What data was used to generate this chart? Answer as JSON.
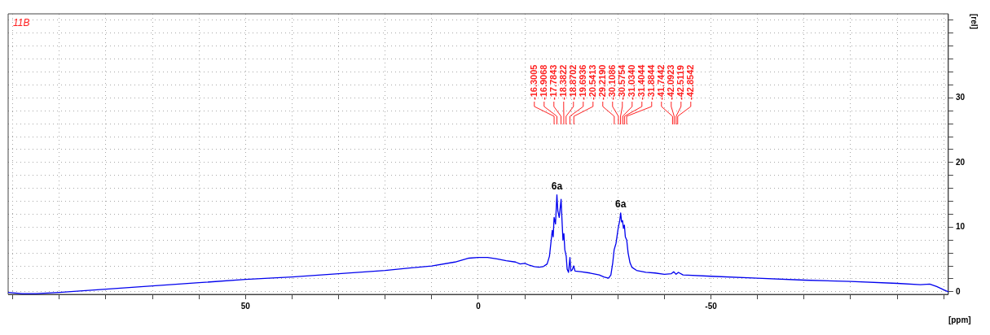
{
  "chart_data": {
    "type": "line",
    "xlabel": "[ppm]",
    "ylabel": "[rel]",
    "xlim": [
      101,
      -101
    ],
    "xticks": [
      {
        "value": 100,
        "label": null
      },
      {
        "value": 90,
        "label": null
      },
      {
        "value": 80,
        "label": null
      },
      {
        "value": 70,
        "label": null
      },
      {
        "value": 60,
        "label": null
      },
      50,
      {
        "value": 40,
        "label": null
      },
      {
        "value": 30,
        "label": null
      },
      {
        "value": 20,
        "label": null
      },
      {
        "value": 10,
        "label": null
      },
      0,
      {
        "value": -10,
        "label": null
      },
      {
        "value": -20,
        "label": null
      },
      {
        "value": -30,
        "label": null
      },
      {
        "value": -40,
        "label": null
      },
      -50,
      {
        "value": -60,
        "label": null
      },
      {
        "value": -70,
        "label": null
      },
      {
        "value": -80,
        "label": null
      },
      {
        "value": -90,
        "label": null
      },
      {
        "value": -100,
        "label": null
      }
    ],
    "ylim": [
      -0.4,
      43
    ],
    "yticks": [
      0,
      {
        "value": 2,
        "label": null
      },
      {
        "value": 4,
        "label": null
      },
      {
        "value": 6,
        "label": null
      },
      {
        "value": 8,
        "label": null
      },
      10,
      {
        "value": 12,
        "label": null
      },
      {
        "value": 14,
        "label": null
      },
      {
        "value": 16,
        "label": null
      },
      {
        "value": 18,
        "label": null
      },
      20,
      {
        "value": 22,
        "label": null
      },
      {
        "value": 24,
        "label": null
      },
      {
        "value": 26,
        "label": null
      },
      {
        "value": 28,
        "label": null
      },
      30,
      {
        "value": 32,
        "label": null
      },
      {
        "value": 34,
        "label": null
      },
      {
        "value": 36,
        "label": null
      },
      {
        "value": 38,
        "label": null
      },
      {
        "value": 40,
        "label": null
      },
      {
        "value": 42,
        "label": null
      }
    ],
    "grid": true,
    "marker": "none",
    "line_style": "solid",
    "series": [
      {
        "color": "#0000ee",
        "x": [
          101,
          98,
          95,
          90,
          80,
          70,
          60,
          50,
          40,
          30,
          20,
          10,
          5,
          2,
          0,
          -2,
          -4,
          -6,
          -8,
          -9,
          -10,
          -11,
          -12,
          -13,
          -14,
          -14.8,
          -15.3,
          -15.6,
          -15.9,
          -16.1,
          -16.3,
          -16.6,
          -16.9,
          -17.1,
          -17.4,
          -17.8,
          -18.0,
          -18.2,
          -18.4,
          -18.6,
          -18.9,
          -19.1,
          -19.4,
          -19.7,
          -19.9,
          -20.2,
          -20.5,
          -20.8,
          -22,
          -24,
          -26,
          -27,
          -28,
          -28.5,
          -28.9,
          -29.2,
          -29.6,
          -30.1,
          -30.4,
          -30.6,
          -30.8,
          -31.0,
          -31.2,
          -31.4,
          -31.6,
          -31.9,
          -32.2,
          -32.6,
          -33,
          -34,
          -36,
          -38,
          -40,
          -41.5,
          -42,
          -42.5,
          -43,
          -44,
          -50,
          -60,
          -70,
          -80,
          -90,
          -95,
          -97,
          -98.5,
          -100,
          -101
        ],
        "values": [
          -0.1,
          -0.3,
          -0.3,
          -0.1,
          0.4,
          0.9,
          1.4,
          1.9,
          2.3,
          2.8,
          3.3,
          4.0,
          4.6,
          5.2,
          5.3,
          5.3,
          5.1,
          4.8,
          4.6,
          4.3,
          4.4,
          4.1,
          3.9,
          3.8,
          3.9,
          4.3,
          5.5,
          7.5,
          9.5,
          8.5,
          11.5,
          10.5,
          15.0,
          12.5,
          11.5,
          14.3,
          11,
          8,
          9,
          6.5,
          5.5,
          3.5,
          3.0,
          5.3,
          3.2,
          3.4,
          4.0,
          3.2,
          3.1,
          2.9,
          2.6,
          2.3,
          2.1,
          2.6,
          4.5,
          6.5,
          7.5,
          10,
          11,
          12.2,
          10.8,
          11,
          9.8,
          10.3,
          8.5,
          8.0,
          6,
          4.5,
          3.8,
          3.3,
          3.0,
          2.9,
          2.7,
          2.8,
          3.1,
          2.7,
          3.0,
          2.6,
          2.4,
          2.1,
          1.8,
          1.6,
          1.3,
          1.1,
          1.2,
          0.8,
          0.3,
          0.0
        ]
      }
    ],
    "annotations": [
      "11B",
      {
        "text": "6a",
        "x": -16.9,
        "y": 15.0
      },
      {
        "text": "6a",
        "x": -30.6,
        "y": 12.2
      },
      {
        "text": "-16.3005",
        "x": -16.3005
      },
      {
        "text": "-16.9068",
        "x": -16.9068
      },
      {
        "text": "-17.7843",
        "x": -17.7843
      },
      {
        "text": "-18.3822",
        "x": -18.3822
      },
      {
        "text": "-18.8702",
        "x": -18.8702
      },
      {
        "text": "-19.6936",
        "x": -19.6936
      },
      {
        "text": "-20.5413",
        "x": -20.5413
      },
      {
        "text": "-29.2190",
        "x": -29.219
      },
      {
        "text": "-30.1086",
        "x": -30.1086
      },
      {
        "text": "-30.5754",
        "x": -30.5754
      },
      {
        "text": "-31.0340",
        "x": -31.034
      },
      {
        "text": "-31.4044",
        "x": -31.4044
      },
      {
        "text": "-31.8844",
        "x": -31.8844
      },
      {
        "text": "-41.7442",
        "x": -41.7442
      },
      {
        "text": "-42.0923",
        "x": -42.0923
      },
      {
        "text": "-42.5119",
        "x": -42.5119
      },
      {
        "text": "-42.8542",
        "x": -42.8542
      }
    ]
  }
}
